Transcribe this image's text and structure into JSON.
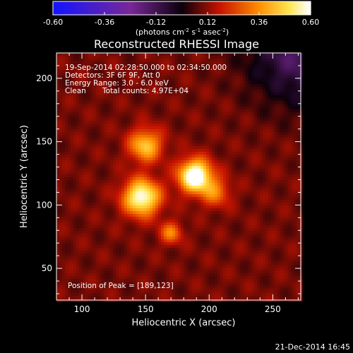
{
  "chart_data": {
    "type": "heatmap",
    "title": "Reconstructed RHESSI Image",
    "xlabel": "Heliocentric X (arcsec)",
    "ylabel": "Heliocentric Y (arcsec)",
    "xlim": [
      80,
      272
    ],
    "ylim": [
      25,
      220
    ],
    "xticks": [
      100,
      150,
      200,
      250
    ],
    "yticks": [
      50,
      100,
      150,
      200
    ],
    "colorbar": {
      "label_main": "(photons cm",
      "exp1": "-2",
      "label_mid1": " s",
      "exp2": "-1",
      "label_mid2": " asec",
      "exp3": "-2",
      "label_end": ")",
      "min": -0.6,
      "max": 0.6,
      "ticks": [
        -0.6,
        -0.36,
        -0.12,
        0.12,
        0.36,
        0.6
      ],
      "tick_labels": [
        "-0.60",
        "-0.36",
        "-0.12",
        "0.12",
        "0.36",
        "0.60"
      ]
    },
    "sources": [
      {
        "x": 189,
        "y": 123,
        "peak": 0.6,
        "sigma": 9
      },
      {
        "x": 147,
        "y": 106,
        "peak": 0.52,
        "sigma": 10
      },
      {
        "x": 150,
        "y": 147,
        "peak": 0.36,
        "sigma": 9
      },
      {
        "x": 170,
        "y": 78,
        "peak": 0.24,
        "sigma": 6
      },
      {
        "x": 205,
        "y": 110,
        "peak": 0.22,
        "sigma": 8
      }
    ],
    "background": 0.1,
    "annotations": {
      "line1": "19-Sep-2014 02:28:50.000 to 02:34:50.000",
      "line2": "Detectors: 3F 6F 9F, Att 0",
      "line3": "Energy Range: 3.0 - 6.0 keV",
      "line4a": "Clean",
      "line4b": "Total counts: 4.97E+04",
      "peak": "Position of Peak = [189,123]"
    },
    "timestamp": "21-Dec-2014 16:45"
  }
}
